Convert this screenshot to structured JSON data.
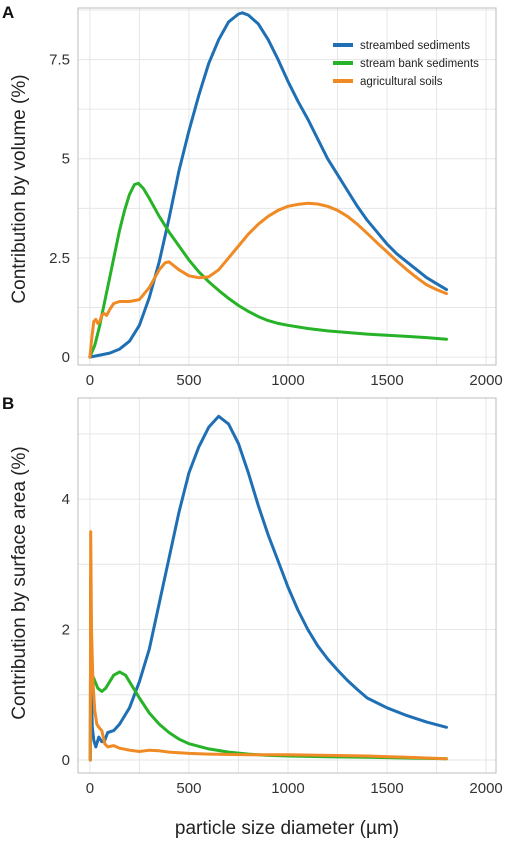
{
  "chart_data": [
    {
      "type": "line",
      "panel_label": "A",
      "ylabel": "Contribution by volume (%)",
      "xlabel": "",
      "xlim": [
        -60,
        2050
      ],
      "ylim": [
        -0.2,
        8.8
      ],
      "x_ticks": [
        0,
        500,
        1000,
        1500,
        2000
      ],
      "y_ticks": [
        0,
        2.5,
        5,
        7.5
      ],
      "y_tick_labels": [
        "0",
        "2.5",
        "5",
        "7.5"
      ],
      "grid": true,
      "legend": "top-right",
      "series": [
        {
          "name": "streambed sediments",
          "color": "#1f6fb4",
          "points": [
            [
              0,
              0
            ],
            [
              50,
              0.05
            ],
            [
              100,
              0.1
            ],
            [
              150,
              0.2
            ],
            [
              200,
              0.4
            ],
            [
              250,
              0.8
            ],
            [
              300,
              1.5
            ],
            [
              350,
              2.4
            ],
            [
              400,
              3.5
            ],
            [
              450,
              4.7
            ],
            [
              500,
              5.7
            ],
            [
              550,
              6.6
            ],
            [
              600,
              7.4
            ],
            [
              650,
              8.0
            ],
            [
              700,
              8.45
            ],
            [
              750,
              8.65
            ],
            [
              770,
              8.68
            ],
            [
              800,
              8.62
            ],
            [
              850,
              8.4
            ],
            [
              900,
              8.0
            ],
            [
              950,
              7.5
            ],
            [
              1000,
              6.95
            ],
            [
              1050,
              6.45
            ],
            [
              1100,
              6.0
            ],
            [
              1150,
              5.5
            ],
            [
              1200,
              5.0
            ],
            [
              1250,
              4.6
            ],
            [
              1300,
              4.2
            ],
            [
              1350,
              3.8
            ],
            [
              1400,
              3.45
            ],
            [
              1450,
              3.15
            ],
            [
              1500,
              2.85
            ],
            [
              1550,
              2.6
            ],
            [
              1600,
              2.4
            ],
            [
              1650,
              2.2
            ],
            [
              1700,
              2.0
            ],
            [
              1750,
              1.85
            ],
            [
              1800,
              1.7
            ]
          ]
        },
        {
          "name": "stream bank sediments",
          "color": "#27b327",
          "points": [
            [
              0,
              0
            ],
            [
              25,
              0.3
            ],
            [
              50,
              0.8
            ],
            [
              75,
              1.4
            ],
            [
              100,
              2.0
            ],
            [
              125,
              2.6
            ],
            [
              150,
              3.2
            ],
            [
              175,
              3.7
            ],
            [
              200,
              4.1
            ],
            [
              225,
              4.35
            ],
            [
              245,
              4.38
            ],
            [
              270,
              4.25
            ],
            [
              300,
              4.0
            ],
            [
              350,
              3.55
            ],
            [
              400,
              3.15
            ],
            [
              450,
              2.8
            ],
            [
              500,
              2.45
            ],
            [
              550,
              2.15
            ],
            [
              600,
              1.9
            ],
            [
              650,
              1.68
            ],
            [
              700,
              1.48
            ],
            [
              750,
              1.3
            ],
            [
              800,
              1.15
            ],
            [
              850,
              1.02
            ],
            [
              900,
              0.92
            ],
            [
              950,
              0.85
            ],
            [
              1000,
              0.8
            ],
            [
              1100,
              0.72
            ],
            [
              1200,
              0.66
            ],
            [
              1300,
              0.62
            ],
            [
              1400,
              0.58
            ],
            [
              1500,
              0.55
            ],
            [
              1600,
              0.52
            ],
            [
              1700,
              0.49
            ],
            [
              1800,
              0.45
            ]
          ]
        },
        {
          "name": "agricultural soils",
          "color": "#f08a24",
          "points": [
            [
              0,
              0
            ],
            [
              10,
              0.5
            ],
            [
              20,
              0.9
            ],
            [
              30,
              0.95
            ],
            [
              40,
              0.85
            ],
            [
              50,
              0.9
            ],
            [
              60,
              1.05
            ],
            [
              70,
              1.1
            ],
            [
              85,
              1.05
            ],
            [
              100,
              1.2
            ],
            [
              120,
              1.35
            ],
            [
              150,
              1.4
            ],
            [
              200,
              1.4
            ],
            [
              250,
              1.45
            ],
            [
              300,
              1.75
            ],
            [
              350,
              2.2
            ],
            [
              380,
              2.38
            ],
            [
              400,
              2.4
            ],
            [
              450,
              2.2
            ],
            [
              500,
              2.05
            ],
            [
              550,
              2.0
            ],
            [
              600,
              2.02
            ],
            [
              650,
              2.2
            ],
            [
              700,
              2.5
            ],
            [
              750,
              2.8
            ],
            [
              800,
              3.1
            ],
            [
              850,
              3.35
            ],
            [
              900,
              3.55
            ],
            [
              950,
              3.7
            ],
            [
              1000,
              3.8
            ],
            [
              1050,
              3.85
            ],
            [
              1100,
              3.88
            ],
            [
              1150,
              3.86
            ],
            [
              1200,
              3.8
            ],
            [
              1250,
              3.7
            ],
            [
              1300,
              3.55
            ],
            [
              1350,
              3.35
            ],
            [
              1400,
              3.12
            ],
            [
              1450,
              2.88
            ],
            [
              1500,
              2.65
            ],
            [
              1550,
              2.42
            ],
            [
              1600,
              2.2
            ],
            [
              1650,
              2.0
            ],
            [
              1700,
              1.82
            ],
            [
              1750,
              1.7
            ],
            [
              1800,
              1.6
            ]
          ]
        }
      ]
    },
    {
      "type": "line",
      "panel_label": "B",
      "ylabel": "Contribution by surface area (%)",
      "xlabel": "particle size diameter (µm)",
      "xlim": [
        -60,
        2050
      ],
      "ylim": [
        -0.2,
        5.55
      ],
      "x_ticks": [
        0,
        500,
        1000,
        1500,
        2000
      ],
      "y_ticks": [
        0,
        2,
        4
      ],
      "y_tick_labels": [
        "0",
        "2",
        "4"
      ],
      "grid": true,
      "series": [
        {
          "name": "streambed sediments",
          "color": "#1f6fb4",
          "points": [
            [
              2,
              0
            ],
            [
              4,
              2.8
            ],
            [
              8,
              1.0
            ],
            [
              12,
              0.5
            ],
            [
              20,
              0.3
            ],
            [
              30,
              0.2
            ],
            [
              45,
              0.35
            ],
            [
              60,
              0.28
            ],
            [
              75,
              0.3
            ],
            [
              90,
              0.42
            ],
            [
              120,
              0.45
            ],
            [
              150,
              0.55
            ],
            [
              200,
              0.8
            ],
            [
              250,
              1.2
            ],
            [
              300,
              1.7
            ],
            [
              350,
              2.4
            ],
            [
              400,
              3.1
            ],
            [
              450,
              3.8
            ],
            [
              500,
              4.4
            ],
            [
              550,
              4.8
            ],
            [
              600,
              5.1
            ],
            [
              650,
              5.27
            ],
            [
              700,
              5.15
            ],
            [
              750,
              4.85
            ],
            [
              800,
              4.4
            ],
            [
              850,
              3.9
            ],
            [
              900,
              3.45
            ],
            [
              950,
              3.05
            ],
            [
              1000,
              2.65
            ],
            [
              1050,
              2.3
            ],
            [
              1100,
              2.0
            ],
            [
              1150,
              1.75
            ],
            [
              1200,
              1.55
            ],
            [
              1250,
              1.38
            ],
            [
              1300,
              1.22
            ],
            [
              1350,
              1.08
            ],
            [
              1400,
              0.95
            ],
            [
              1500,
              0.8
            ],
            [
              1600,
              0.68
            ],
            [
              1700,
              0.58
            ],
            [
              1800,
              0.5
            ]
          ]
        },
        {
          "name": "stream bank sediments",
          "color": "#27b327",
          "points": [
            [
              2,
              0
            ],
            [
              4,
              2.6
            ],
            [
              10,
              1.3
            ],
            [
              20,
              1.25
            ],
            [
              40,
              1.1
            ],
            [
              60,
              1.05
            ],
            [
              80,
              1.1
            ],
            [
              100,
              1.2
            ],
            [
              120,
              1.3
            ],
            [
              150,
              1.35
            ],
            [
              180,
              1.3
            ],
            [
              200,
              1.2
            ],
            [
              250,
              0.95
            ],
            [
              300,
              0.72
            ],
            [
              350,
              0.55
            ],
            [
              400,
              0.42
            ],
            [
              450,
              0.32
            ],
            [
              500,
              0.25
            ],
            [
              600,
              0.17
            ],
            [
              700,
              0.12
            ],
            [
              800,
              0.09
            ],
            [
              900,
              0.07
            ],
            [
              1000,
              0.06
            ],
            [
              1200,
              0.05
            ],
            [
              1400,
              0.04
            ],
            [
              1600,
              0.03
            ],
            [
              1800,
              0.02
            ]
          ]
        },
        {
          "name": "agricultural soils",
          "color": "#f08a24",
          "points": [
            [
              2,
              0
            ],
            [
              4,
              3.5
            ],
            [
              8,
              2.0
            ],
            [
              15,
              1.2
            ],
            [
              25,
              0.75
            ],
            [
              35,
              0.55
            ],
            [
              45,
              0.5
            ],
            [
              60,
              0.45
            ],
            [
              75,
              0.25
            ],
            [
              90,
              0.2
            ],
            [
              120,
              0.22
            ],
            [
              150,
              0.18
            ],
            [
              200,
              0.15
            ],
            [
              250,
              0.13
            ],
            [
              300,
              0.15
            ],
            [
              350,
              0.14
            ],
            [
              400,
              0.12
            ],
            [
              500,
              0.1
            ],
            [
              600,
              0.09
            ],
            [
              800,
              0.08
            ],
            [
              1000,
              0.08
            ],
            [
              1200,
              0.07
            ],
            [
              1400,
              0.06
            ],
            [
              1600,
              0.04
            ],
            [
              1800,
              0.02
            ]
          ]
        }
      ]
    }
  ]
}
